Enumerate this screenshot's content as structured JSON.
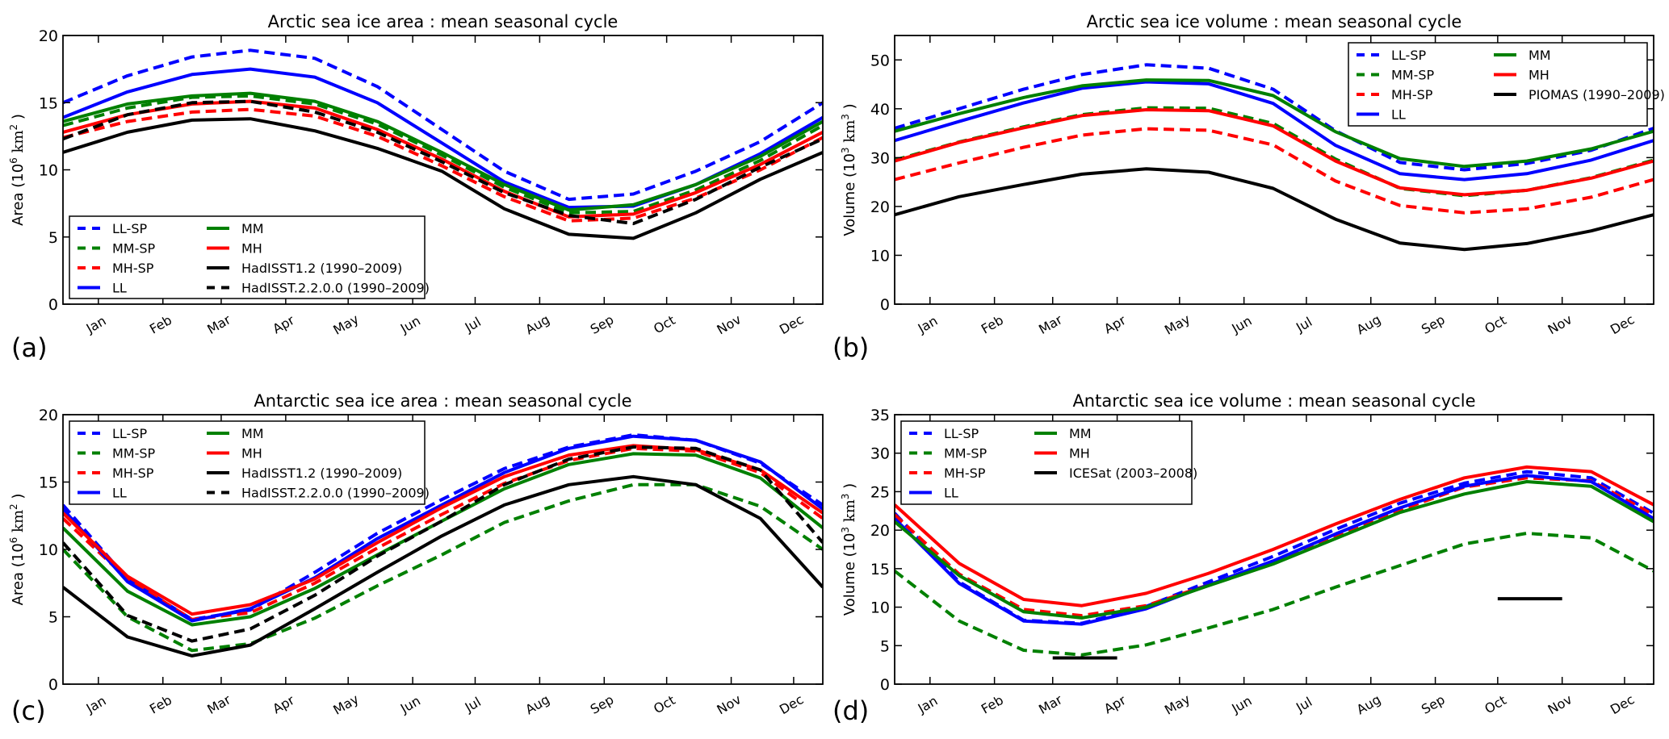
{
  "chart_data": [
    {
      "id": "a",
      "type": "line",
      "panel_label": "(a)",
      "title": "Arctic sea ice area : mean seasonal cycle",
      "xlabel": "",
      "ylabel": "Area (10^6 km^2 )",
      "ylabel_parts": {
        "pre": "Area (10",
        "exp": "6",
        "mid": " km",
        "exp2": "2",
        "post": " )"
      },
      "ylim": [
        0,
        20
      ],
      "yticks": [
        0,
        5,
        10,
        15,
        20
      ],
      "x_categories": [
        "Jan",
        "Feb",
        "Mar",
        "Apr",
        "May",
        "Jun",
        "Jul",
        "Aug",
        "Sep",
        "Oct",
        "Nov",
        "Dec"
      ],
      "grid": false,
      "legend_position": "bottom-left",
      "legend_columns": 2,
      "series": [
        {
          "name": "LL-SP",
          "color": "#0000ff",
          "dash": "dashed",
          "values": [
            17.0,
            18.4,
            18.9,
            18.3,
            16.2,
            13.0,
            9.9,
            7.8,
            8.2,
            9.9,
            12.1,
            15.0
          ]
        },
        {
          "name": "MM-SP",
          "color": "#008000",
          "dash": "dashed",
          "values": [
            14.6,
            15.4,
            15.5,
            14.9,
            13.4,
            11.1,
            8.7,
            6.8,
            6.9,
            8.5,
            10.7,
            13.3
          ]
        },
        {
          "name": "MH-SP",
          "color": "#ff0000",
          "dash": "dashed",
          "values": [
            13.6,
            14.3,
            14.5,
            14.0,
            12.5,
            10.3,
            8.0,
            6.2,
            6.4,
            7.9,
            10.0,
            12.4
          ]
        },
        {
          "name": "LL",
          "color": "#0000ff",
          "dash": "solid",
          "values": [
            15.8,
            17.1,
            17.5,
            16.9,
            15.0,
            12.0,
            9.1,
            7.2,
            7.3,
            8.9,
            11.2,
            13.9
          ]
        },
        {
          "name": "MM",
          "color": "#008000",
          "dash": "solid",
          "values": [
            14.9,
            15.5,
            15.7,
            15.1,
            13.6,
            11.3,
            8.9,
            7.0,
            7.4,
            8.9,
            11.0,
            13.6
          ]
        },
        {
          "name": "MH",
          "color": "#ff0000",
          "dash": "solid",
          "values": [
            14.1,
            14.9,
            15.1,
            14.6,
            13.0,
            10.8,
            8.4,
            6.5,
            6.7,
            8.3,
            10.4,
            12.8
          ]
        },
        {
          "name": "HadISST1.2 (1990–2009)",
          "color": "#000000",
          "dash": "solid",
          "values": [
            12.8,
            13.7,
            13.8,
            12.9,
            11.6,
            9.9,
            7.1,
            5.2,
            4.9,
            6.8,
            9.3,
            11.3
          ]
        },
        {
          "name": "HadISST.2.2.0.0 (1990–2009)",
          "color": "#000000",
          "dash": "dashed",
          "values": [
            14.1,
            15.0,
            15.1,
            14.3,
            12.8,
            10.6,
            8.3,
            6.6,
            6.0,
            7.8,
            10.2,
            12.3
          ]
        }
      ]
    },
    {
      "id": "b",
      "type": "line",
      "panel_label": "(b)",
      "title": "Arctic sea ice volume : mean seasonal cycle",
      "xlabel": "",
      "ylabel": "Volume (10^3 km^3 )",
      "ylabel_parts": {
        "pre": "Volume (10",
        "exp": "3",
        "mid": " km",
        "exp2": "3",
        "post": " )"
      },
      "ylim": [
        0,
        55
      ],
      "yticks": [
        0,
        10,
        20,
        30,
        40,
        50
      ],
      "x_categories": [
        "Jan",
        "Feb",
        "Mar",
        "Apr",
        "May",
        "Jun",
        "Jul",
        "Aug",
        "Sep",
        "Oct",
        "Nov",
        "Dec"
      ],
      "grid": false,
      "legend_position": "top-right",
      "legend_columns": 2,
      "series": [
        {
          "name": "LL-SP",
          "color": "#0000ff",
          "dash": "dashed",
          "values": [
            40.0,
            44.0,
            47.0,
            49.0,
            48.3,
            44.0,
            35.5,
            29.0,
            27.5,
            28.8,
            31.5,
            36.0
          ]
        },
        {
          "name": "MM-SP",
          "color": "#008000",
          "dash": "dashed",
          "values": [
            33.2,
            36.3,
            38.8,
            40.2,
            40.1,
            37.0,
            29.7,
            23.7,
            22.2,
            23.3,
            25.9,
            29.5
          ]
        },
        {
          "name": "MH-SP",
          "color": "#ff0000",
          "dash": "dashed",
          "values": [
            28.9,
            32.1,
            34.6,
            35.9,
            35.6,
            32.6,
            25.2,
            20.2,
            18.7,
            19.5,
            21.9,
            25.5
          ]
        },
        {
          "name": "LL",
          "color": "#0000ff",
          "dash": "solid",
          "values": [
            37.4,
            41.2,
            44.2,
            45.5,
            45.1,
            41.1,
            32.5,
            26.7,
            25.5,
            26.7,
            29.5,
            33.5
          ]
        },
        {
          "name": "MM",
          "color": "#008000",
          "dash": "solid",
          "values": [
            39.0,
            42.3,
            44.7,
            45.9,
            45.8,
            42.7,
            35.3,
            29.8,
            28.2,
            29.3,
            31.8,
            35.4
          ]
        },
        {
          "name": "MH",
          "color": "#ff0000",
          "dash": "solid",
          "values": [
            33.1,
            36.1,
            38.6,
            39.8,
            39.6,
            36.5,
            29.3,
            23.8,
            22.4,
            23.3,
            25.8,
            29.3
          ]
        },
        {
          "name": "PIOMAS (1990–2009)",
          "color": "#000000",
          "dash": "solid",
          "values": [
            22.0,
            24.5,
            26.6,
            27.7,
            27.0,
            23.7,
            17.4,
            12.5,
            11.2,
            12.4,
            15.0,
            18.3
          ]
        }
      ]
    },
    {
      "id": "c",
      "type": "line",
      "panel_label": "(c)",
      "title": "Antarctic sea ice area : mean seasonal cycle",
      "xlabel": "",
      "ylabel": "Area (10^6 km^2 )",
      "ylabel_parts": {
        "pre": "Area (10",
        "exp": "6",
        "mid": " km",
        "exp2": "2",
        "post": " )"
      },
      "ylim": [
        0,
        20
      ],
      "yticks": [
        0,
        5,
        10,
        15,
        20
      ],
      "x_categories": [
        "Jan",
        "Feb",
        "Mar",
        "Apr",
        "May",
        "Jun",
        "Jul",
        "Aug",
        "Sep",
        "Oct",
        "Nov",
        "Dec"
      ],
      "grid": false,
      "legend_position": "top-left",
      "legend_columns": 2,
      "series": [
        {
          "name": "LL-SP",
          "color": "#0000ff",
          "dash": "dashed",
          "values": [
            7.8,
            4.8,
            5.5,
            8.3,
            11.2,
            13.7,
            16.0,
            17.6,
            18.5,
            18.1,
            16.4,
            13.3
          ]
        },
        {
          "name": "MM-SP",
          "color": "#008000",
          "dash": "dashed",
          "values": [
            5.0,
            2.5,
            3.0,
            4.9,
            7.3,
            9.6,
            12.0,
            13.6,
            14.8,
            14.8,
            13.2,
            10.0
          ]
        },
        {
          "name": "MH-SP",
          "color": "#ff0000",
          "dash": "dashed",
          "values": [
            7.8,
            4.8,
            5.3,
            7.5,
            10.1,
            12.6,
            14.9,
            16.6,
            17.5,
            17.3,
            15.7,
            12.3
          ]
        },
        {
          "name": "LL",
          "color": "#0000ff",
          "dash": "solid",
          "values": [
            7.6,
            4.7,
            5.6,
            7.9,
            10.8,
            13.3,
            15.7,
            17.5,
            18.4,
            18.1,
            16.5,
            13.0
          ]
        },
        {
          "name": "MM",
          "color": "#008000",
          "dash": "solid",
          "values": [
            6.9,
            4.4,
            5.0,
            7.1,
            9.6,
            12.1,
            14.5,
            16.3,
            17.1,
            17.0,
            15.3,
            11.6
          ]
        },
        {
          "name": "MH",
          "color": "#ff0000",
          "dash": "solid",
          "values": [
            8.0,
            5.2,
            5.9,
            7.8,
            10.5,
            13.1,
            15.4,
            17.0,
            17.7,
            17.4,
            15.9,
            12.7
          ]
        },
        {
          "name": "HadISST1.2 (1990–2009)",
          "color": "#000000",
          "dash": "solid",
          "values": [
            3.5,
            2.1,
            2.9,
            5.6,
            8.3,
            11.0,
            13.3,
            14.8,
            15.4,
            14.8,
            12.3,
            7.2
          ]
        },
        {
          "name": "HadISST.2.2.0.0 (1990–2009)",
          "color": "#000000",
          "dash": "dashed",
          "values": [
            5.1,
            3.2,
            4.1,
            6.6,
            9.5,
            12.1,
            14.8,
            16.7,
            17.6,
            17.5,
            15.9,
            10.5
          ]
        }
      ]
    },
    {
      "id": "d",
      "type": "line",
      "panel_label": "(d)",
      "title": "Antarctic sea ice volume : mean seasonal cycle",
      "xlabel": "",
      "ylabel": "Volume (10^3 km^3 )",
      "ylabel_parts": {
        "pre": "Volume (10",
        "exp": "3",
        "mid": " km",
        "exp2": "3",
        "post": " )"
      },
      "ylim": [
        0,
        35
      ],
      "yticks": [
        0,
        5,
        10,
        15,
        20,
        25,
        30,
        35
      ],
      "x_categories": [
        "Jan",
        "Feb",
        "Mar",
        "Apr",
        "May",
        "Jun",
        "Jul",
        "Aug",
        "Sep",
        "Oct",
        "Nov",
        "Dec"
      ],
      "grid": false,
      "legend_position": "top-left",
      "legend_columns": 2,
      "series": [
        {
          "name": "LL-SP",
          "color": "#0000ff",
          "dash": "dashed",
          "values": [
            13.3,
            8.3,
            7.9,
            10.1,
            13.3,
            16.6,
            20.1,
            23.5,
            26.1,
            27.6,
            26.8,
            22.2
          ]
        },
        {
          "name": "MM-SP",
          "color": "#008000",
          "dash": "dashed",
          "values": [
            8.2,
            4.4,
            3.8,
            5.1,
            7.3,
            9.7,
            12.6,
            15.4,
            18.2,
            19.6,
            19.0,
            14.7
          ]
        },
        {
          "name": "MH-SP",
          "color": "#ff0000",
          "dash": "dashed",
          "values": [
            14.3,
            9.7,
            8.9,
            10.2,
            12.9,
            15.8,
            19.2,
            22.6,
            25.6,
            26.8,
            26.4,
            22.0
          ]
        },
        {
          "name": "LL",
          "color": "#0000ff",
          "dash": "solid",
          "values": [
            13.1,
            8.2,
            7.8,
            9.8,
            12.9,
            16.0,
            19.5,
            22.9,
            25.7,
            27.1,
            26.3,
            21.5
          ]
        },
        {
          "name": "MM",
          "color": "#008000",
          "dash": "solid",
          "values": [
            14.1,
            9.4,
            8.6,
            10.0,
            12.8,
            15.6,
            18.9,
            22.3,
            24.7,
            26.3,
            25.7,
            21.1
          ]
        },
        {
          "name": "MH",
          "color": "#ff0000",
          "dash": "solid",
          "values": [
            15.7,
            11.0,
            10.2,
            11.8,
            14.4,
            17.5,
            20.8,
            24.0,
            26.8,
            28.2,
            27.6,
            23.3
          ]
        }
      ],
      "observation_segments": {
        "name": "ICESat (2003–2008)",
        "color": "#000000",
        "dash": "solid",
        "segments": [
          {
            "from_month": "Mar",
            "to_month": "Apr",
            "value": 3.4
          },
          {
            "from_month": "Oct",
            "to_month": "Nov",
            "value": 11.1
          }
        ]
      }
    }
  ]
}
